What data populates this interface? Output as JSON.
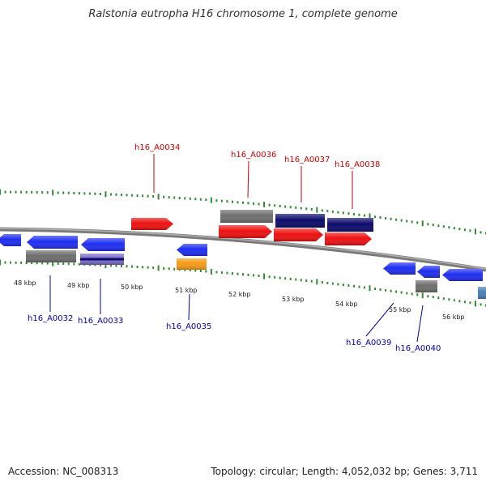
{
  "title": "Ralstonia eutropha H16 chromosome 1, complete genome",
  "footer": {
    "accession": "Accession: NC_008313",
    "topology": "Topology: circular; Length: 4,052,032 bp; Genes: 3,711"
  },
  "colors": {
    "backbone": "#7a7a7a",
    "tick": "#2e8b2e",
    "forward_label": "#cc0000",
    "reverse_label": "#0000aa",
    "blue": "#1f2ef2",
    "red": "#ee1111",
    "gray": "#6e6e6e",
    "navy": "#0b0b6b",
    "orange": "#f59a16",
    "steel": "#4a7fb5"
  },
  "scale": [
    "48 kbp",
    "49 kbp",
    "50 kbp",
    "51 kbp",
    "52 kbp",
    "53 kbp",
    "54 kbp",
    "55 kbp",
    "56 kbp"
  ],
  "forward_labels": [
    "h16_A0034",
    "h16_A0036",
    "h16_A0037",
    "h16_A0038"
  ],
  "reverse_labels": [
    "h16_A0032",
    "h16_A0033",
    "h16_A0035",
    "h16_A0039",
    "h16_A0040"
  ]
}
